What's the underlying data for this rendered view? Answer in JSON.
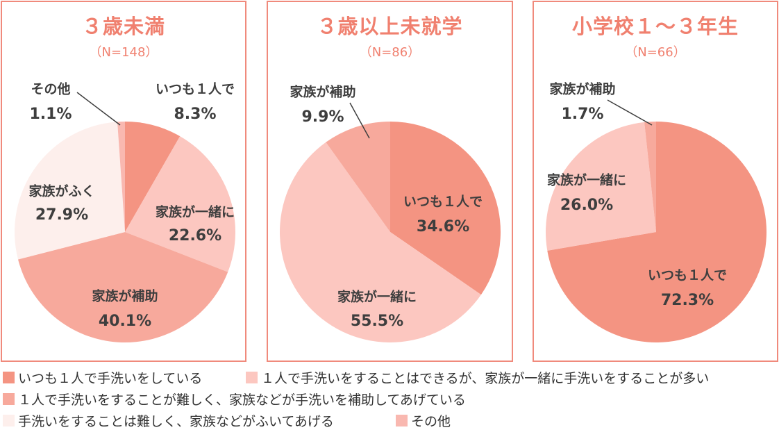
{
  "chart_data": {
    "type": "pie",
    "colors": {
      "alone": "#f49482",
      "together": "#fcc7c0",
      "assist": "#f7a99c",
      "wipe": "#fdefec",
      "other": "#f9b8b0"
    },
    "legend": [
      {
        "key": "alone",
        "label": "いつも１人で手洗いをしている"
      },
      {
        "key": "together",
        "label": "１人で手洗いをすることはできるが、家族が一緒に手洗いをすることが多い"
      },
      {
        "key": "assist",
        "label": "１人で手洗いをすることが難しく、家族などが手洗いを補助してあげている"
      },
      {
        "key": "wipe",
        "label": "手洗いをすることは難しく、家族などがふいてあげる"
      },
      {
        "key": "other",
        "label": "その他"
      }
    ],
    "charts": [
      {
        "title": "３歳未満",
        "n": "（N=148）",
        "slices": [
          {
            "key": "alone",
            "label": "いつも１人で",
            "value": 8.3,
            "display": "8.3%"
          },
          {
            "key": "together",
            "label": "家族が一緒に",
            "value": 22.6,
            "display": "22.6%"
          },
          {
            "key": "assist",
            "label": "家族が補助",
            "value": 40.1,
            "display": "40.1%"
          },
          {
            "key": "wipe",
            "label": "家族がふく",
            "value": 27.9,
            "display": "27.9%"
          },
          {
            "key": "other",
            "label": "その他",
            "value": 1.1,
            "display": "1.1%"
          }
        ]
      },
      {
        "title": "３歳以上未就学",
        "n": "（N=86）",
        "slices": [
          {
            "key": "alone",
            "label": "いつも１人で",
            "value": 34.6,
            "display": "34.6%"
          },
          {
            "key": "together",
            "label": "家族が一緒に",
            "value": 55.5,
            "display": "55.5%"
          },
          {
            "key": "assist",
            "label": "家族が補助",
            "value": 9.9,
            "display": "9.9%"
          }
        ]
      },
      {
        "title": "小学校１～３年生",
        "n": "（N=66）",
        "slices": [
          {
            "key": "alone",
            "label": "いつも１人で",
            "value": 72.3,
            "display": "72.3%"
          },
          {
            "key": "together",
            "label": "家族が一緒に",
            "value": 26.0,
            "display": "26.0%"
          },
          {
            "key": "assist",
            "label": "家族が補助",
            "value": 1.7,
            "display": "1.7%"
          }
        ]
      }
    ]
  }
}
